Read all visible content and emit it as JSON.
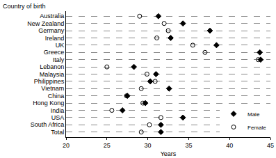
{
  "chart_data": {
    "type": "scatter",
    "y_label": "Country of birth",
    "x_label": "Years",
    "categories": [
      "Australia",
      "New Zealand",
      "Germany",
      "Ireland",
      "UK",
      "Greece",
      "Italy",
      "Lebanon",
      "Malaysia",
      "Philippines",
      "Vietnam",
      "China",
      "Hong Kong",
      "India",
      "USA",
      "South Africa",
      "Total"
    ],
    "series": [
      {
        "name": "Male",
        "color": "#000000",
        "marker": "diamond",
        "values": [
          31.3,
          34.3,
          37.6,
          32.8,
          38.4,
          43.7,
          43.8,
          28.3,
          31.0,
          30.3,
          32.6,
          27.5,
          29.7,
          26.9,
          34.3,
          31.6,
          31.6
        ]
      },
      {
        "name": "Female",
        "color": "#000000",
        "marker": "circle-open",
        "values": [
          29.0,
          32.0,
          32.5,
          31.1,
          35.5,
          37.0,
          43.5,
          25.0,
          29.9,
          30.9,
          29.2,
          27.4,
          29.4,
          25.6,
          31.6,
          30.2,
          29.2
        ]
      }
    ],
    "xlim": [
      20,
      45
    ],
    "xticks": [
      20,
      25,
      30,
      35,
      40,
      45
    ],
    "grid": true,
    "legend": "lower right"
  }
}
